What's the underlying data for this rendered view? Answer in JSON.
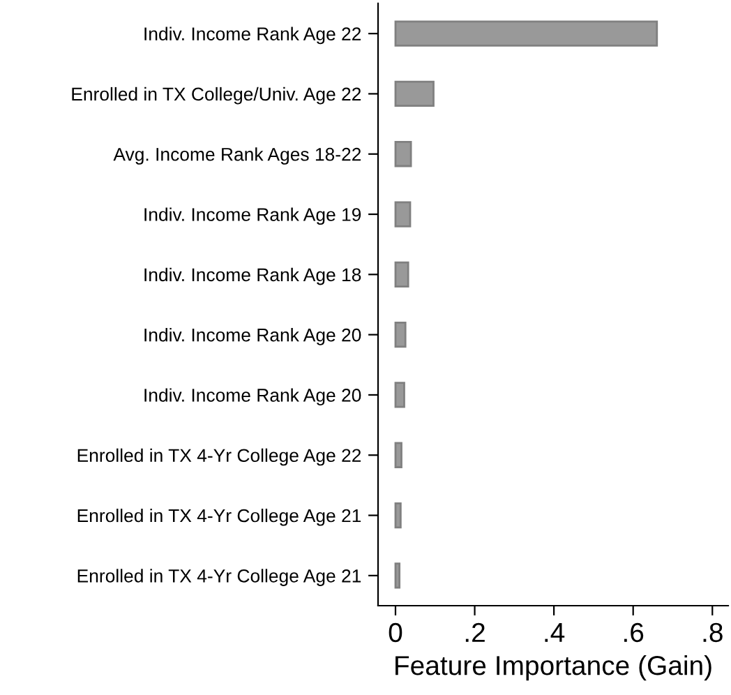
{
  "chart_data": {
    "type": "bar",
    "orientation": "horizontal",
    "xlabel": "Feature Importance (Gain)",
    "categories": [
      "Indiv. Income Rank Age 22",
      "Enrolled in TX College/Univ. Age 22",
      "Avg. Income Rank Ages 18-22",
      "Indiv. Income Rank Age 19",
      "Indiv. Income Rank Age 18",
      "Indiv. Income Rank Age 20",
      "Indiv. Income Rank Age 20",
      "Enrolled in TX 4-Yr College Age 22",
      "Enrolled in TX 4-Yr College Age 21",
      "Enrolled in TX 4-Yr College Age 21"
    ],
    "values": [
      0.66,
      0.096,
      0.039,
      0.037,
      0.032,
      0.025,
      0.022,
      0.015,
      0.013,
      0.01
    ],
    "color": "#999999",
    "xlim": [
      -0.044,
      0.84
    ],
    "xticks": [
      {
        "value": 0,
        "label": "0"
      },
      {
        "value": 0.2,
        "label": ".2"
      },
      {
        "value": 0.4,
        "label": ".4"
      },
      {
        "value": 0.6,
        "label": ".6"
      },
      {
        "value": 0.8,
        "label": ".8"
      }
    ],
    "grid": false,
    "legend": false
  }
}
